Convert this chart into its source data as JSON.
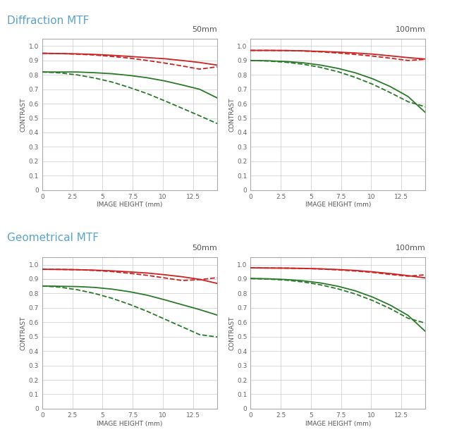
{
  "title_diffraction": "Diffraction MTF",
  "title_geometrical": "Geometrical MTF",
  "title_color": "#5ba3c9",
  "label_50mm": "50mm",
  "label_100mm": "100mm",
  "xlabel": "IMAGE HEIGHT (mm)",
  "ylabel": "CONTRAST",
  "xlim": [
    0,
    14.5
  ],
  "ylim": [
    0,
    1.05
  ],
  "xticks": [
    0,
    2.5,
    5,
    7.5,
    10,
    12.5
  ],
  "yticks": [
    0,
    0.1,
    0.2,
    0.3,
    0.4,
    0.5,
    0.6,
    0.7,
    0.8,
    0.9,
    1
  ],
  "background_color": "#ffffff",
  "plot_background": "#ffffff",
  "grid_color": "#cccccc",
  "red_color": "#cc2222",
  "green_color": "#2a7a2a",
  "diff_50_red_solid": [
    0.95,
    0.948,
    0.946,
    0.942,
    0.936,
    0.928,
    0.92,
    0.912,
    0.9,
    0.886,
    0.868
  ],
  "diff_50_red_dashed": [
    0.95,
    0.948,
    0.944,
    0.938,
    0.928,
    0.916,
    0.9,
    0.882,
    0.862,
    0.84,
    0.856
  ],
  "diff_50_grn_solid": [
    0.82,
    0.82,
    0.82,
    0.815,
    0.808,
    0.796,
    0.78,
    0.758,
    0.73,
    0.7,
    0.64
  ],
  "diff_50_grn_dashed": [
    0.82,
    0.814,
    0.8,
    0.778,
    0.75,
    0.712,
    0.67,
    0.62,
    0.568,
    0.516,
    0.462
  ],
  "diff_100_red_solid": [
    0.97,
    0.97,
    0.969,
    0.967,
    0.963,
    0.958,
    0.952,
    0.944,
    0.932,
    0.92,
    0.91
  ],
  "diff_100_red_dashed": [
    0.97,
    0.97,
    0.969,
    0.966,
    0.96,
    0.952,
    0.942,
    0.93,
    0.916,
    0.9,
    0.908
  ],
  "diff_100_grn_solid": [
    0.9,
    0.898,
    0.893,
    0.884,
    0.868,
    0.845,
    0.814,
    0.772,
    0.718,
    0.65,
    0.538
  ],
  "diff_100_grn_dashed": [
    0.9,
    0.896,
    0.888,
    0.874,
    0.852,
    0.822,
    0.782,
    0.734,
    0.676,
    0.614,
    0.578
  ],
  "geo_50_red_solid": [
    0.968,
    0.967,
    0.965,
    0.962,
    0.957,
    0.95,
    0.942,
    0.93,
    0.916,
    0.898,
    0.87
  ],
  "geo_50_red_dashed": [
    0.968,
    0.967,
    0.965,
    0.96,
    0.952,
    0.94,
    0.926,
    0.908,
    0.89,
    0.896,
    0.91
  ],
  "geo_50_grn_solid": [
    0.852,
    0.85,
    0.848,
    0.842,
    0.83,
    0.812,
    0.788,
    0.756,
    0.722,
    0.688,
    0.65
  ],
  "geo_50_grn_dashed": [
    0.852,
    0.844,
    0.826,
    0.8,
    0.766,
    0.724,
    0.676,
    0.622,
    0.568,
    0.514,
    0.498
  ],
  "geo_100_red_solid": [
    0.978,
    0.977,
    0.976,
    0.974,
    0.971,
    0.966,
    0.96,
    0.95,
    0.938,
    0.924,
    0.908
  ],
  "geo_100_red_dashed": [
    0.978,
    0.977,
    0.976,
    0.974,
    0.97,
    0.964,
    0.956,
    0.946,
    0.932,
    0.92,
    0.93
  ],
  "geo_100_grn_solid": [
    0.904,
    0.902,
    0.897,
    0.888,
    0.873,
    0.85,
    0.818,
    0.774,
    0.718,
    0.648,
    0.536
  ],
  "geo_100_grn_dashed": [
    0.904,
    0.9,
    0.893,
    0.88,
    0.86,
    0.832,
    0.796,
    0.75,
    0.694,
    0.628,
    0.594
  ],
  "x_values": [
    0,
    1.45,
    2.9,
    4.35,
    5.8,
    7.25,
    8.7,
    10.15,
    11.6,
    13.05,
    14.5
  ]
}
